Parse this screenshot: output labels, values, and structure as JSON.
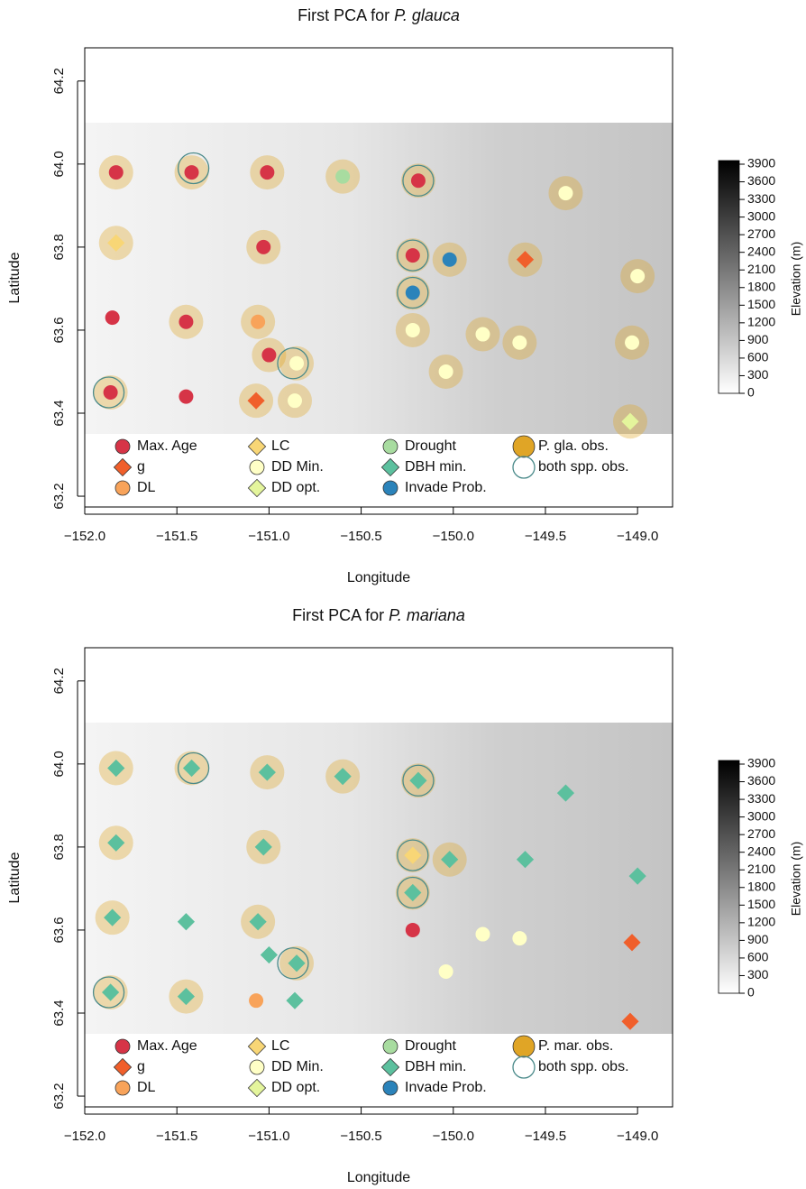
{
  "chart_data": [
    {
      "type": "scatter",
      "title": "First PCA for",
      "title_italic": "P. glauca",
      "xlabel": "Longitude",
      "ylabel": "Latitude",
      "xlim": [
        -152,
        -148.81
      ],
      "ylim": [
        63.174,
        64.28
      ],
      "xticks": [
        {
          "value": -152,
          "label": "−152.0"
        },
        {
          "value": -151.5,
          "label": "−151.5"
        },
        {
          "value": -151,
          "label": "−151.0"
        },
        {
          "value": -150.5,
          "label": "−150.5"
        },
        {
          "value": -150,
          "label": "−150.0"
        },
        {
          "value": -149.5,
          "label": "−149.5"
        },
        {
          "value": -149,
          "label": "−149.0"
        }
      ],
      "yticks": [
        63.2,
        63.4,
        63.6,
        63.8,
        {
          "value": 64,
          "label": "64.0"
        },
        64.2
      ],
      "series": [
        {
          "name": "Max. Age",
          "color": "#d63447",
          "marker": "circle",
          "x": [
            -151.83,
            -151.42,
            -151.01,
            -150.19,
            -151.03,
            -150.22,
            -151.85,
            -151.45,
            -151.0,
            -151.86,
            -151.45
          ],
          "y": [
            63.98,
            63.98,
            63.98,
            63.96,
            63.8,
            63.78,
            63.63,
            63.62,
            63.54,
            63.45,
            63.44
          ]
        },
        {
          "name": "g",
          "color": "#f05f2b",
          "marker": "diamond",
          "x": [
            -149.61,
            -151.07
          ],
          "y": [
            63.77,
            63.43
          ]
        },
        {
          "name": "DL",
          "color": "#f8a35a",
          "marker": "circle",
          "x": [
            -151.06
          ],
          "y": [
            63.62
          ]
        },
        {
          "name": "LC",
          "color": "#f8d676",
          "marker": "diamond",
          "x": [
            -151.83
          ],
          "y": [
            63.81
          ]
        },
        {
          "name": "DD Min.",
          "color": "#ffffc6",
          "marker": "circle",
          "x": [
            -149.39,
            -149.0,
            -150.22,
            -149.84,
            -149.64,
            -149.03,
            -150.85,
            -150.86,
            -150.04
          ],
          "y": [
            63.93,
            63.73,
            63.6,
            63.59,
            63.57,
            63.57,
            63.52,
            63.43,
            63.5
          ]
        },
        {
          "name": "DD opt.",
          "color": "#e4f59c",
          "marker": "diamond",
          "x": [
            -149.04
          ],
          "y": [
            63.38
          ]
        },
        {
          "name": "Drought",
          "color": "#a8dca0",
          "marker": "circle",
          "x": [
            -150.6
          ],
          "y": [
            63.97
          ]
        },
        {
          "name": "DBH min.",
          "color": "#5cc09e",
          "marker": "diamond",
          "x": [],
          "y": []
        },
        {
          "name": "Invade Prob.",
          "color": "#2b83ba",
          "marker": "circle",
          "x": [
            -150.02,
            -150.22
          ],
          "y": [
            63.77,
            63.69
          ]
        },
        {
          "name": "P. gla. obs.",
          "color": "#e0a526",
          "marker": "halo",
          "x": [
            -151.83,
            -151.42,
            -151.01,
            -150.6,
            -150.19,
            -149.39,
            -151.83,
            -151.03,
            -150.22,
            -150.02,
            -149.61,
            -149.0,
            -150.22,
            -151.45,
            -151.06,
            -150.22,
            -149.84,
            -149.64,
            -149.03,
            -151.0,
            -150.85,
            -150.04,
            -151.86,
            -151.07,
            -150.86,
            -149.04
          ],
          "y": [
            63.98,
            63.98,
            63.98,
            63.97,
            63.96,
            63.93,
            63.81,
            63.8,
            63.78,
            63.77,
            63.77,
            63.73,
            63.69,
            63.62,
            63.62,
            63.6,
            63.59,
            63.57,
            63.57,
            63.54,
            63.52,
            63.5,
            63.45,
            63.43,
            63.43,
            63.38
          ]
        },
        {
          "name": "both spp. obs.",
          "color": "#4a8a8a",
          "marker": "ring",
          "x": [
            -151.41,
            -150.19,
            -150.22,
            -150.22,
            -150.87,
            -151.87
          ],
          "y": [
            63.99,
            63.96,
            63.78,
            63.69,
            63.52,
            63.45
          ]
        }
      ],
      "colorbar": {
        "label": "Elevation (m)",
        "lim": [
          0,
          3900
        ],
        "ticks": [
          0,
          300,
          600,
          900,
          1200,
          1500,
          1800,
          2100,
          2400,
          2700,
          3000,
          3300,
          3600,
          3900
        ]
      }
    },
    {
      "type": "scatter",
      "title": "First PCA for",
      "title_italic": "P. mariana",
      "xlabel": "Longitude",
      "ylabel": "Latitude",
      "xlim": [
        -152,
        -148.81
      ],
      "ylim": [
        63.174,
        64.28
      ],
      "xticks": [
        {
          "value": -152,
          "label": "−152.0"
        },
        {
          "value": -151.5,
          "label": "−151.5"
        },
        {
          "value": -151,
          "label": "−151.0"
        },
        {
          "value": -150.5,
          "label": "−150.5"
        },
        {
          "value": -150,
          "label": "−150.0"
        },
        {
          "value": -149.5,
          "label": "−149.5"
        },
        {
          "value": -149,
          "label": "−149.0"
        }
      ],
      "yticks": [
        63.2,
        63.4,
        63.6,
        63.8,
        {
          "value": 64,
          "label": "64.0"
        },
        64.2
      ],
      "series": [
        {
          "name": "Max. Age",
          "color": "#d63447",
          "marker": "circle",
          "x": [
            -150.22
          ],
          "y": [
            63.6
          ]
        },
        {
          "name": "g",
          "color": "#f05f2b",
          "marker": "diamond",
          "x": [
            -149.03,
            -149.04
          ],
          "y": [
            63.57,
            63.38
          ]
        },
        {
          "name": "DL",
          "color": "#f8a35a",
          "marker": "circle",
          "x": [
            -151.07
          ],
          "y": [
            63.43
          ]
        },
        {
          "name": "LC",
          "color": "#f8d676",
          "marker": "diamond",
          "x": [
            -150.22
          ],
          "y": [
            63.78
          ]
        },
        {
          "name": "DD Min.",
          "color": "#ffffc6",
          "marker": "circle",
          "x": [
            -150.04,
            -149.84,
            -149.64
          ],
          "y": [
            63.5,
            63.59,
            63.58
          ]
        },
        {
          "name": "DD opt.",
          "color": "#e4f59c",
          "marker": "diamond",
          "x": [],
          "y": []
        },
        {
          "name": "Drought",
          "color": "#a8dca0",
          "marker": "circle",
          "x": [],
          "y": []
        },
        {
          "name": "DBH min.",
          "color": "#5cc09e",
          "marker": "diamond",
          "x": [
            -151.83,
            -151.42,
            -151.01,
            -150.6,
            -150.19,
            -149.39,
            -151.83,
            -151.03,
            -150.02,
            -149.61,
            -149.0,
            -150.22,
            -151.85,
            -151.45,
            -151.06,
            -151.0,
            -150.85,
            -151.86,
            -151.45,
            -150.86
          ],
          "y": [
            63.99,
            63.99,
            63.98,
            63.97,
            63.96,
            63.93,
            63.81,
            63.8,
            63.77,
            63.77,
            63.73,
            63.69,
            63.63,
            63.62,
            63.62,
            63.54,
            63.52,
            63.45,
            63.44,
            63.43
          ]
        },
        {
          "name": "Invade Prob.",
          "color": "#2b83ba",
          "marker": "circle",
          "x": [],
          "y": []
        },
        {
          "name": "P. mar. obs.",
          "color": "#e0a526",
          "marker": "halo",
          "x": [
            -151.83,
            -151.42,
            -151.01,
            -150.6,
            -150.19,
            -151.83,
            -151.03,
            -150.22,
            -150.02,
            -150.22,
            -151.85,
            -151.06,
            -150.85,
            -151.86,
            -151.45
          ],
          "y": [
            63.99,
            63.99,
            63.98,
            63.97,
            63.96,
            63.81,
            63.8,
            63.78,
            63.77,
            63.69,
            63.63,
            63.62,
            63.52,
            63.45,
            63.44
          ]
        },
        {
          "name": "both spp. obs.",
          "color": "#4a8a8a",
          "marker": "ring",
          "x": [
            -151.41,
            -150.19,
            -150.22,
            -150.22,
            -150.87,
            -151.87
          ],
          "y": [
            63.99,
            63.96,
            63.78,
            63.69,
            63.52,
            63.45
          ]
        }
      ],
      "colorbar": {
        "label": "Elevation (m)",
        "lim": [
          0,
          3900
        ],
        "ticks": [
          0,
          300,
          600,
          900,
          1200,
          1500,
          1800,
          2100,
          2400,
          2700,
          3000,
          3300,
          3600,
          3900
        ]
      }
    }
  ]
}
